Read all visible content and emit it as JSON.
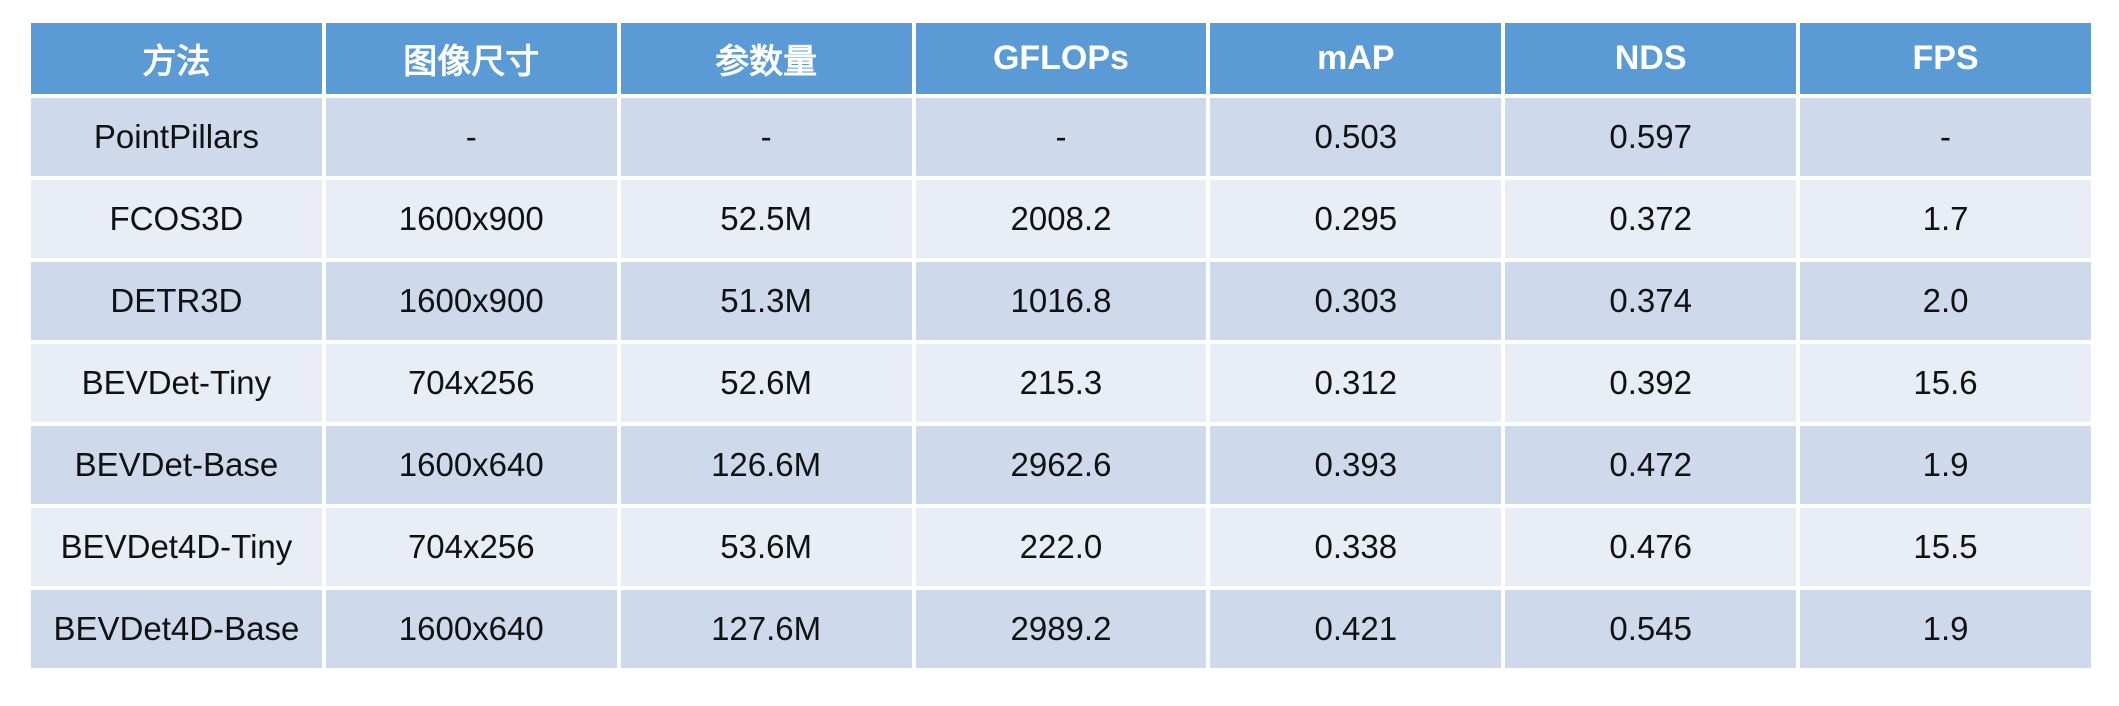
{
  "table": {
    "headers": [
      "方法",
      "图像尺寸",
      "参数量",
      "GFLOPs",
      "mAP",
      "NDS",
      "FPS"
    ],
    "rows": [
      [
        "PointPillars",
        "-",
        "-",
        "-",
        "0.503",
        "0.597",
        "-"
      ],
      [
        "FCOS3D",
        "1600x900",
        "52.5M",
        "2008.2",
        "0.295",
        "0.372",
        "1.7"
      ],
      [
        "DETR3D",
        "1600x900",
        "51.3M",
        "1016.8",
        "0.303",
        "0.374",
        "2.0"
      ],
      [
        "BEVDet-Tiny",
        "704x256",
        "52.6M",
        "215.3",
        "0.312",
        "0.392",
        "15.6"
      ],
      [
        "BEVDet-Base",
        "1600x640",
        "126.6M",
        "2962.6",
        "0.393",
        "0.472",
        "1.9"
      ],
      [
        "BEVDet4D-Tiny",
        "704x256",
        "53.6M",
        "222.0",
        "0.338",
        "0.476",
        "15.5"
      ],
      [
        "BEVDet4D-Base",
        "1600x640",
        "127.6M",
        "2989.2",
        "0.421",
        "0.545",
        "1.9"
      ]
    ]
  },
  "colors": {
    "header_bg": "#5b9bd5",
    "row_odd_bg": "#cfd9ec",
    "row_even_bg": "#e9eef6"
  }
}
